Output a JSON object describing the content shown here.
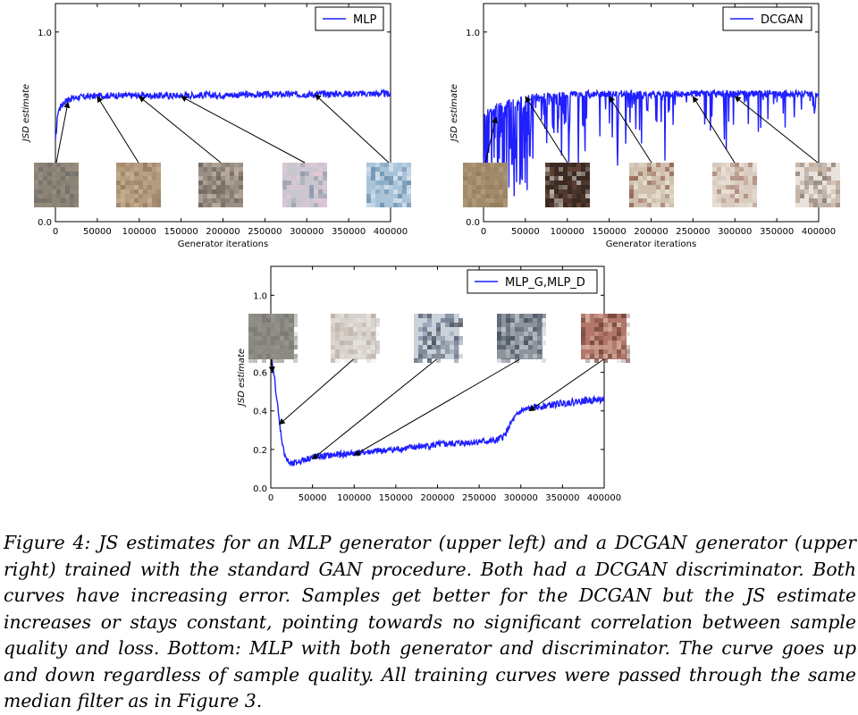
{
  "chart_data": [
    {
      "type": "line",
      "panel": "upper-left",
      "xlabel": "Generator iterations",
      "ylabel": "JSD estimate",
      "xlim": [
        0,
        400000
      ],
      "ylim": [
        0.0,
        1.15
      ],
      "xticks": [
        "0",
        "50000",
        "100000",
        "150000",
        "200000",
        "250000",
        "300000",
        "350000",
        "400000"
      ],
      "yticks": [
        "0.0",
        "1.0"
      ],
      "legend": "top-right",
      "series": [
        {
          "name": "MLP",
          "color": "#1f1fff",
          "x": [
            0,
            3000,
            8000,
            15000,
            25000,
            40000,
            60000,
            100000,
            150000,
            200000,
            250000,
            300000,
            350000,
            380000,
            400000
          ],
          "y": [
            0.42,
            0.58,
            0.62,
            0.645,
            0.655,
            0.66,
            0.665,
            0.665,
            0.665,
            0.668,
            0.67,
            0.672,
            0.675,
            0.675,
            0.675
          ]
        }
      ],
      "annotations": [
        {
          "x": 15000,
          "y": 0.63
        },
        {
          "x": 50000,
          "y": 0.66
        },
        {
          "x": 100000,
          "y": 0.66
        },
        {
          "x": 150000,
          "y": 0.66
        },
        {
          "x": 310000,
          "y": 0.67
        }
      ]
    },
    {
      "type": "line",
      "panel": "upper-right",
      "xlabel": "Generator iterations",
      "ylabel": "JSD estimate",
      "xlim": [
        0,
        400000
      ],
      "ylim": [
        0.0,
        1.15
      ],
      "xticks": [
        "0",
        "50000",
        "100000",
        "150000",
        "200000",
        "250000",
        "300000",
        "350000",
        "400000"
      ],
      "yticks": [
        "0.0",
        "1.0"
      ],
      "legend": "top-right",
      "series": [
        {
          "name": "DCGAN",
          "color": "#1f1fff",
          "x": [
            0,
            5000,
            15000,
            30000,
            60000,
            100000,
            150000,
            200000,
            250000,
            300000,
            350000,
            400000
          ],
          "y": [
            0.55,
            0.58,
            0.6,
            0.63,
            0.66,
            0.67,
            0.675,
            0.675,
            0.675,
            0.675,
            0.675,
            0.675
          ]
        }
      ],
      "annotations": [
        {
          "x": 15000,
          "y": 0.55
        },
        {
          "x": 50000,
          "y": 0.66
        },
        {
          "x": 150000,
          "y": 0.66
        },
        {
          "x": 250000,
          "y": 0.66
        },
        {
          "x": 300000,
          "y": 0.66
        }
      ]
    },
    {
      "type": "line",
      "panel": "bottom",
      "xlabel": "",
      "ylabel": "JSD estimate",
      "xlim": [
        0,
        400000
      ],
      "ylim": [
        0.0,
        1.15
      ],
      "xticks": [
        "0",
        "50000",
        "100000",
        "150000",
        "200000",
        "250000",
        "300000",
        "350000",
        "400000"
      ],
      "yticks": [
        "0.0",
        "0.2",
        "0.4",
        "0.6",
        "0.8",
        "1.0"
      ],
      "legend": "top-right",
      "series": [
        {
          "name": "MLP_G,MLP_D",
          "color": "#1f1fff",
          "x": [
            0,
            5000,
            10000,
            15000,
            20000,
            25000,
            35000,
            50000,
            100000,
            150000,
            200000,
            250000,
            270000,
            280000,
            290000,
            300000,
            320000,
            350000,
            380000,
            400000
          ],
          "y": [
            0.7,
            0.55,
            0.35,
            0.2,
            0.14,
            0.12,
            0.14,
            0.16,
            0.18,
            0.2,
            0.225,
            0.24,
            0.245,
            0.27,
            0.35,
            0.4,
            0.42,
            0.44,
            0.455,
            0.46
          ]
        }
      ],
      "annotations": [
        {
          "x": 2000,
          "y": 0.6
        },
        {
          "x": 10000,
          "y": 0.33
        },
        {
          "x": 50000,
          "y": 0.15
        },
        {
          "x": 100000,
          "y": 0.17
        },
        {
          "x": 310000,
          "y": 0.4
        }
      ]
    }
  ],
  "caption": "Figure 4: JS estimates for an MLP generator (upper left) and a DCGAN generator (upper right) trained with the standard GAN procedure. Both had a DCGAN discriminator. Both curves have increasing error. Samples get better for the DCGAN but the JS estimate increases or stays constant, pointing towards no significant correlation between sample quality and loss. Bottom: MLP with both generator and discriminator. The curve goes up and down regardless of sample quality. All training curves were passed through the same median filter as in Figure 3."
}
